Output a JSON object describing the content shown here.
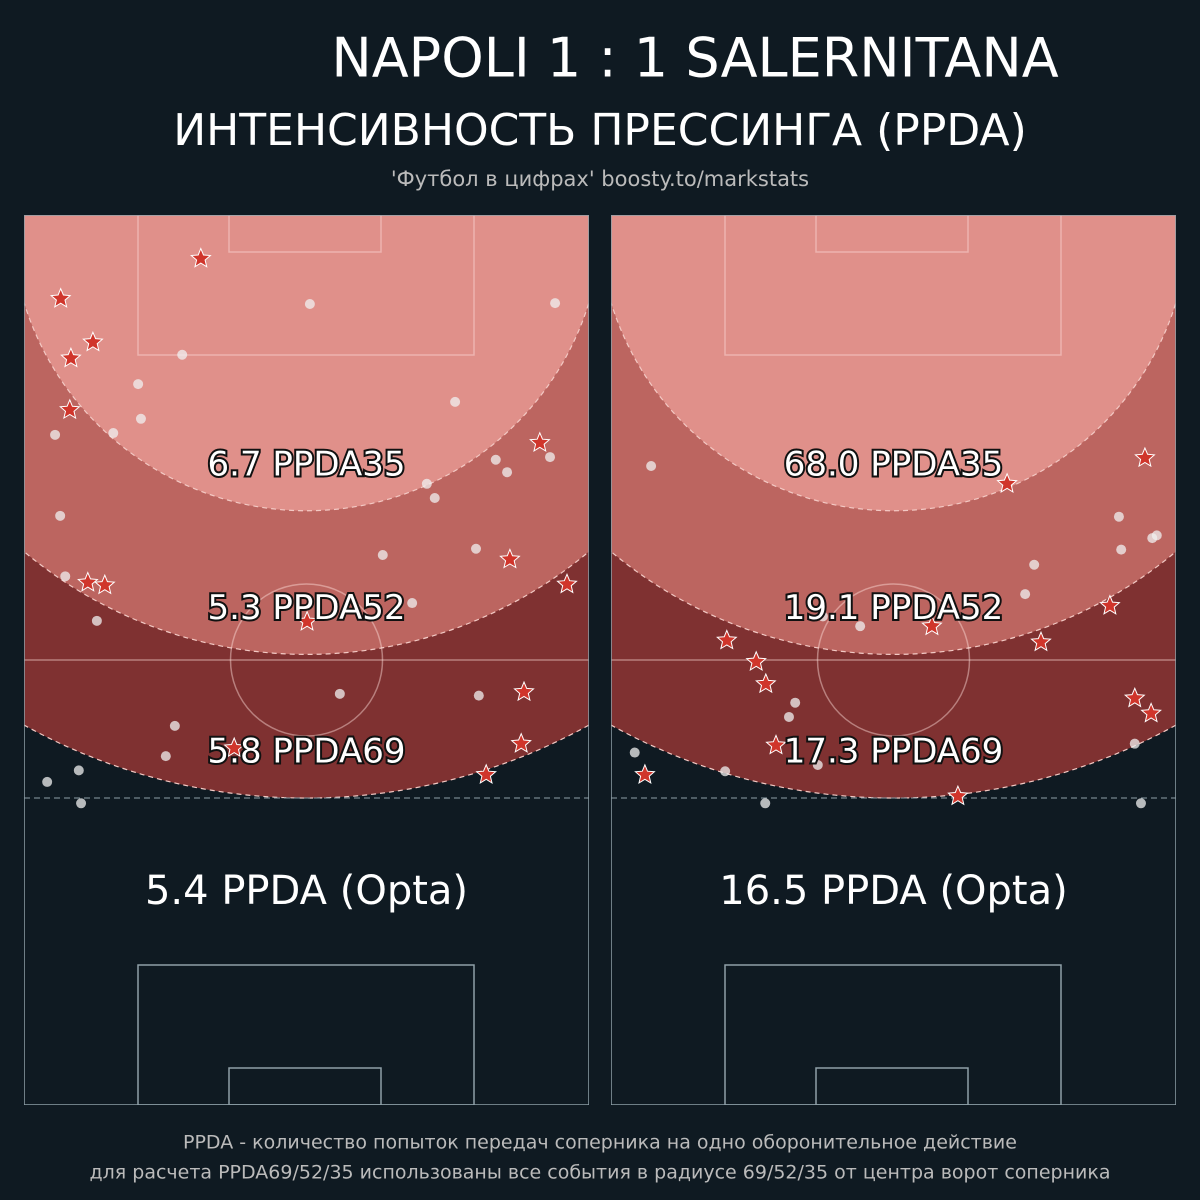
{
  "header": {
    "title": "NAPOLI  1 : 1  SALERNITANA",
    "subtitle": "ИНТЕНСИВНОСТЬ ПРЕССИНГА (PPDA)",
    "source": "'Футбол в цифрах' boosty.to/markstats"
  },
  "chart_data": [
    {
      "type": "scatter",
      "xlim": [
        0,
        100
      ],
      "ylim": [
        0,
        100
      ],
      "zones": {
        "radii": [
          69,
          52,
          35
        ],
        "labels": [
          "5.8 PPDA69",
          "5.3 PPDA52",
          "6.7 PPDA35"
        ],
        "colors": [
          "#7f3131",
          "#bc6560",
          "#e0908a"
        ]
      },
      "opta_label": "5.4 PPDA (Opta)",
      "stars": {
        "color": "#d0352b",
        "x": [
          31.3,
          6.5,
          12.2,
          8.3,
          8.1,
          91.3,
          86.0,
          11.3,
          14.3,
          96.1,
          50.1,
          88.5,
          88.0,
          81.8,
          37.2
        ],
        "y": [
          4.9,
          9.4,
          14.3,
          16.1,
          21.9,
          25.6,
          38.7,
          41.3,
          41.6,
          41.5,
          45.7,
          53.6,
          59.4,
          62.9,
          59.9
        ]
      },
      "dots": {
        "color": "#f0f0f0",
        "x": [
          50.6,
          94.0,
          28.0,
          20.2,
          20.7,
          15.8,
          5.5,
          76.3,
          83.5,
          85.5,
          93.1,
          71.3,
          72.7,
          6.4,
          63.5,
          80.0,
          7.3,
          12.9,
          68.7,
          55.9,
          80.5,
          26.7,
          25.1,
          9.7,
          4.1,
          10.1
        ],
        "y": [
          10.0,
          9.9,
          15.7,
          19.0,
          22.9,
          24.5,
          24.7,
          21.0,
          27.5,
          28.9,
          27.2,
          30.2,
          31.8,
          33.8,
          38.2,
          37.5,
          40.6,
          45.6,
          43.6,
          53.8,
          54.0,
          57.4,
          60.8,
          62.4,
          63.7,
          66.1
        ]
      }
    },
    {
      "type": "scatter",
      "xlim": [
        0,
        100
      ],
      "ylim": [
        0,
        100
      ],
      "zones": {
        "radii": [
          69,
          52,
          35
        ],
        "labels": [
          "17.3 PPDA69",
          "19.1 PPDA52",
          "68.0 PPDA35"
        ],
        "colors": [
          "#7f3131",
          "#bc6560",
          "#e0908a"
        ]
      },
      "opta_label": "16.5 PPDA (Opta)",
      "stars": {
        "color": "#d0352b",
        "x": [
          94.5,
          70.1,
          88.3,
          56.8,
          76.1,
          20.5,
          25.7,
          27.4,
          92.7,
          95.6,
          29.2,
          6.0,
          61.4
        ],
        "y": [
          27.3,
          30.2,
          43.9,
          46.2,
          48.0,
          47.8,
          50.2,
          52.7,
          54.3,
          56.0,
          59.6,
          62.9,
          65.3
        ]
      },
      "dots": {
        "color": "#f0f0f0",
        "x": [
          7.1,
          89.9,
          96.6,
          95.8,
          90.3,
          74.9,
          73.3,
          37.5,
          44.1,
          32.6,
          31.5,
          92.7,
          4.2,
          20.2,
          36.6,
          27.3,
          93.8
        ],
        "y": [
          28.2,
          33.9,
          36.0,
          36.3,
          37.6,
          39.3,
          42.6,
          45.1,
          46.2,
          54.8,
          56.4,
          59.4,
          60.4,
          62.5,
          61.8,
          66.1,
          66.1
        ]
      }
    }
  ],
  "footer": {
    "lines": [
      "PPDA - количество попыток передач соперника на одно оборонительное действие",
      "для расчета PPDA69/52/35 использованы все события в радиусе 69/52/35 от центра ворот соперника"
    ]
  }
}
